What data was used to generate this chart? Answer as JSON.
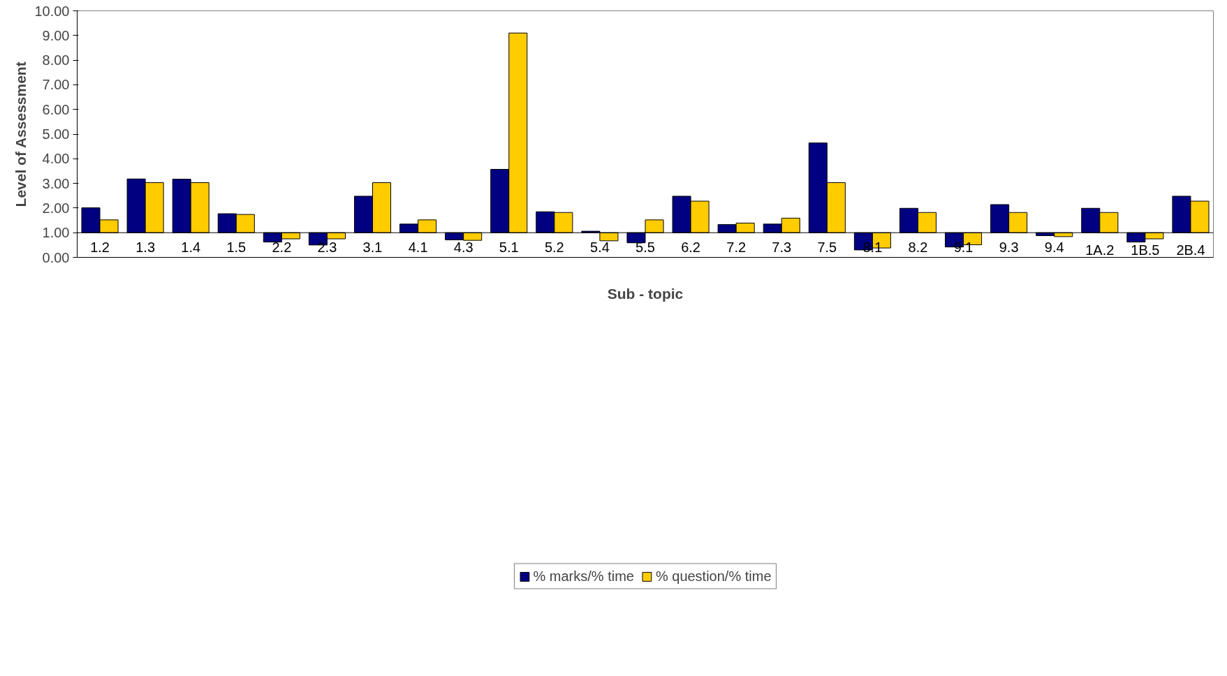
{
  "chart_data": {
    "type": "bar",
    "xlabel": "Sub - topic",
    "ylabel": "Level of Assessment",
    "categories": [
      "1.2",
      "1.3",
      "1.4",
      "1.5",
      "2.2",
      "2.3",
      "3.1",
      "4.1",
      "4.3",
      "5.1",
      "5.2",
      "5.4",
      "5.5",
      "6.2",
      "7.2",
      "7.3",
      "7.5",
      "8.1",
      "8.2",
      "9.1",
      "9.3",
      "9.4",
      "1A.2",
      "1B.5",
      "2B.4"
    ],
    "series": [
      {
        "name": "% marks/% time",
        "color": "#000080",
        "base": [
          1,
          1,
          1,
          1,
          1,
          1,
          1,
          1,
          1,
          1,
          1,
          1,
          1,
          1,
          1,
          1,
          1,
          1,
          1,
          1,
          1,
          1,
          1,
          1,
          1
        ],
        "values": [
          1.01,
          2.18,
          2.17,
          0.77,
          -0.38,
          -0.5,
          1.48,
          0.35,
          -0.29,
          2.57,
          0.85,
          0.06,
          -0.41,
          1.48,
          0.33,
          0.35,
          3.64,
          -0.7,
          0.99,
          -0.58,
          1.14,
          -0.12,
          0.99,
          -0.38,
          1.48
        ]
      },
      {
        "name": "% question/% time",
        "color": "#ffcc00",
        "base": [
          1,
          1,
          1,
          1,
          1,
          1,
          1,
          1,
          1,
          1,
          1,
          1,
          1,
          1,
          1,
          1,
          1,
          1,
          1,
          1,
          1,
          1,
          1,
          1,
          1
        ],
        "values": [
          0.52,
          2.03,
          2.03,
          0.74,
          -0.25,
          -0.25,
          2.03,
          0.52,
          -0.31,
          8.1,
          0.82,
          -0.33,
          0.52,
          1.28,
          0.39,
          0.59,
          2.03,
          -0.62,
          0.82,
          -0.49,
          0.82,
          -0.16,
          0.82,
          -0.25,
          1.28
        ]
      }
    ],
    "ylim": [
      0,
      10
    ],
    "yticks": [
      {
        "value": 0,
        "label": "0.00"
      },
      {
        "value": 1,
        "label": "1.00"
      },
      {
        "value": 2,
        "label": "2.00"
      },
      {
        "value": 3,
        "label": "3.00"
      },
      {
        "value": 4,
        "label": "4.00"
      },
      {
        "value": 5,
        "label": "5.00"
      },
      {
        "value": 6,
        "label": "6.00"
      },
      {
        "value": 7,
        "label": "7.00"
      },
      {
        "value": 8,
        "label": "8.00"
      },
      {
        "value": 9,
        "label": "9.00"
      },
      {
        "value": 10,
        "label": "10.00"
      }
    ],
    "ref_lines": [
      {
        "axis": "y",
        "value": 1
      }
    ],
    "grid": false,
    "legend": "bottom"
  }
}
